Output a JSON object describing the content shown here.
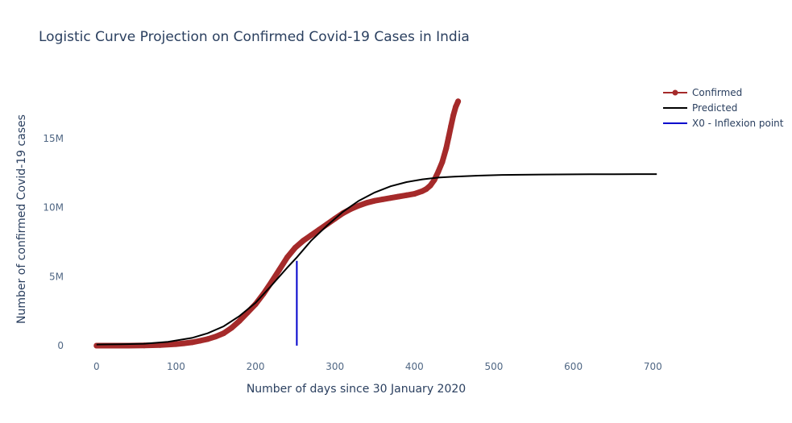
{
  "chart_data": {
    "type": "line",
    "title": "Logistic Curve Projection on Confirmed Covid-19 Cases in India",
    "xlabel": "Number of days since 30 January 2020",
    "ylabel": "Number of confirmed Covid-19 cases",
    "xlim": [
      -15,
      720
    ],
    "ylim": [
      -1400000,
      19500000
    ],
    "x_ticks": [
      0,
      100,
      200,
      300,
      400,
      500,
      600,
      700
    ],
    "x_tick_labels": [
      "0",
      "100",
      "200",
      "300",
      "400",
      "500",
      "600",
      "700"
    ],
    "y_ticks": [
      0,
      5000000,
      10000000,
      15000000
    ],
    "y_tick_labels": [
      "0",
      "5M",
      "10M",
      "15M"
    ],
    "grid": false,
    "legend_position": "top-right",
    "series": [
      {
        "name": "Confirmed",
        "color": "#a52a2a",
        "mode": "lines+markers",
        "x": [
          0,
          20,
          40,
          60,
          80,
          100,
          110,
          120,
          130,
          140,
          150,
          160,
          170,
          180,
          190,
          200,
          210,
          220,
          230,
          240,
          250,
          260,
          270,
          280,
          290,
          300,
          310,
          320,
          330,
          340,
          350,
          360,
          370,
          380,
          390,
          400,
          410,
          415,
          420,
          425,
          430,
          435,
          440,
          443,
          446,
          449,
          452,
          455
        ],
        "y": [
          0,
          0,
          0,
          15000,
          40000,
          110000,
          170000,
          240000,
          350000,
          480000,
          660000,
          900000,
          1290000,
          1800000,
          2400000,
          3000000,
          3750000,
          4600000,
          5500000,
          6400000,
          7100000,
          7600000,
          8000000,
          8400000,
          8800000,
          9200000,
          9600000,
          9900000,
          10150000,
          10350000,
          10500000,
          10600000,
          10700000,
          10800000,
          10900000,
          11000000,
          11200000,
          11350000,
          11600000,
          12000000,
          12600000,
          13300000,
          14300000,
          15100000,
          15900000,
          16700000,
          17300000,
          17700000
        ]
      },
      {
        "name": "Predicted",
        "color": "#000000",
        "mode": "lines",
        "x": [
          0,
          30,
          60,
          90,
          120,
          140,
          160,
          180,
          200,
          220,
          240,
          252,
          270,
          290,
          310,
          330,
          350,
          370,
          390,
          410,
          430,
          450,
          480,
          510,
          560,
          620,
          680,
          705
        ],
        "y": [
          80000,
          100000,
          140000,
          280000,
          560000,
          900000,
          1400000,
          2150000,
          3100000,
          4350000,
          5650000,
          6400000,
          7600000,
          8700000,
          9700000,
          10500000,
          11100000,
          11550000,
          11850000,
          12050000,
          12180000,
          12250000,
          12320000,
          12370000,
          12400000,
          12420000,
          12430000,
          12430000
        ]
      },
      {
        "name": "X0 - Inflexion point",
        "color": "#0000cc",
        "mode": "lines",
        "x": [
          252,
          252
        ],
        "y": [
          0,
          6150000
        ]
      }
    ]
  }
}
